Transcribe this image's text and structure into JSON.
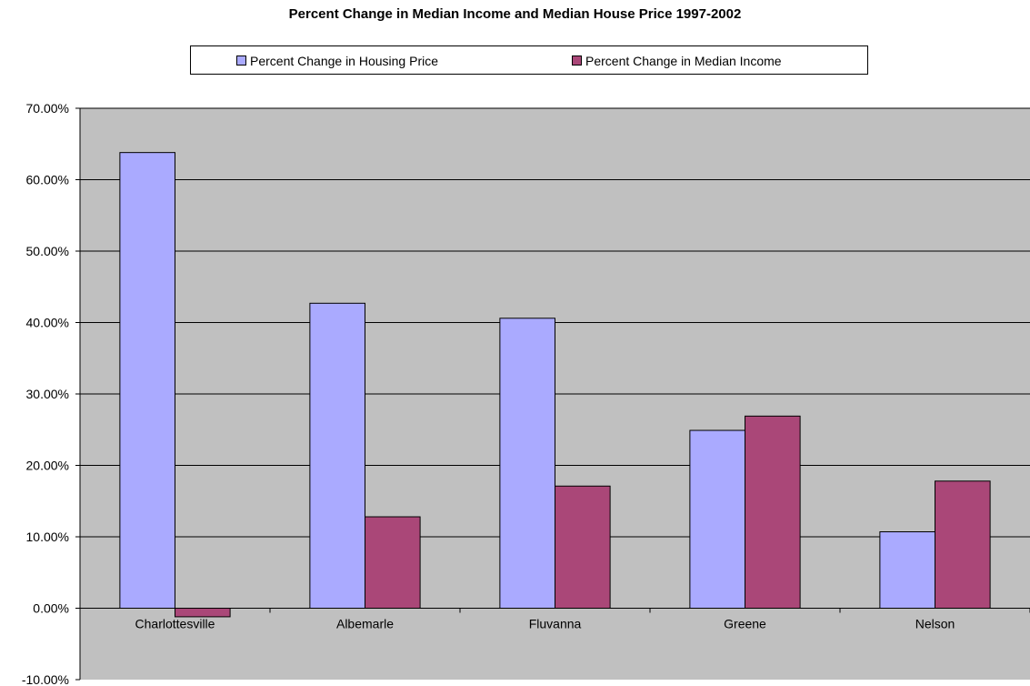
{
  "chart_data": {
    "type": "bar",
    "title": "Percent Change in Median Income and Median House Price 1997-2002",
    "categories": [
      "Charlottesville",
      "Albemarle",
      "Fluvanna",
      "Greene",
      "Nelson"
    ],
    "series": [
      {
        "name": "Percent Change in Housing Price",
        "color": "#aaaaff",
        "values": [
          63.8,
          42.7,
          40.6,
          24.9,
          10.7
        ]
      },
      {
        "name": "Percent Change in Median Income",
        "color": "#aa4778",
        "values": [
          -1.2,
          12.8,
          17.1,
          26.9,
          17.8
        ]
      }
    ],
    "ylim": [
      -10,
      70
    ],
    "yticks": [
      -10,
      0,
      10,
      20,
      30,
      40,
      50,
      60,
      70
    ],
    "ytick_labels": [
      "-10.00%",
      "0.00%",
      "10.00%",
      "20.00%",
      "30.00%",
      "40.00%",
      "50.00%",
      "60.00%",
      "70.00%"
    ],
    "xlabel": "",
    "ylabel": "",
    "grid": true,
    "plot_background": "#c0c0c0",
    "legend": "top"
  }
}
